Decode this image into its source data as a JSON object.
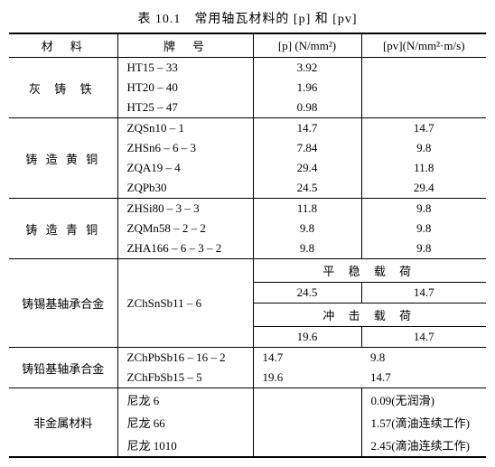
{
  "caption": "表 10.1　常用轴瓦材料的 [p] 和 [pv]",
  "head": {
    "c1": "材　料",
    "c2": "牌　号",
    "c3": "[p] (N/mm²)",
    "c4": "[pv](N/mm²·m/s)"
  },
  "sections": [
    {
      "material": "灰 铸 铁",
      "rows": [
        {
          "grade": "HT15 – 33",
          "p": "3.92",
          "pv": ""
        },
        {
          "grade": "HT20 – 40",
          "p": "1.96",
          "pv": ""
        },
        {
          "grade": "HT25 – 47",
          "p": "0.98",
          "pv": ""
        }
      ]
    },
    {
      "material": "铸 造 黄 铜",
      "rows": [
        {
          "grade": "ZQSn10 – 1",
          "p": "14.7",
          "pv": "14.7"
        },
        {
          "grade": "ZHSn6 – 6 – 3",
          "p": "7.84",
          "pv": "9.8"
        },
        {
          "grade": "ZQA19 – 4",
          "p": "29.4",
          "pv": "11.8"
        },
        {
          "grade": "ZQPb30",
          "p": "24.5",
          "pv": "29.4"
        }
      ]
    },
    {
      "material": "铸 造 青 铜",
      "rows": [
        {
          "grade": "ZHSi80 – 3 – 3",
          "p": "11.8",
          "pv": "9.8"
        },
        {
          "grade": "ZQMn58 – 2 – 2",
          "p": "9.8",
          "pv": "9.8"
        },
        {
          "grade": "ZHA166 – 6 – 3 – 2",
          "p": "9.8",
          "pv": "9.8"
        }
      ]
    }
  ],
  "tin_alloy": {
    "material": "铸锡基轴承合金",
    "grade": "ZChSnSb11 – 6",
    "rowA_label": "平 稳 载 荷",
    "rowA_p": "24.5",
    "rowA_pv": "14.7",
    "rowB_label": "冲 击 载 荷",
    "rowB_p": "19.6",
    "rowB_pv": "14.7"
  },
  "lead_alloy": {
    "material": "铸铅基轴承合金",
    "rows": [
      {
        "grade": "ZChPbSb16 – 16 – 2",
        "p": "14.7",
        "pv": "9.8"
      },
      {
        "grade": "ZChFbSb15 – 5",
        "p": "19.6",
        "pv": "14.7"
      }
    ]
  },
  "nonmetal": {
    "material": "非金属材料",
    "rows": [
      {
        "grade": "尼龙 6",
        "pv": "0.09(无润滑)"
      },
      {
        "grade": "尼龙 66",
        "pv": "1.57(滴油连续工作)"
      },
      {
        "grade": "尼龙 1010",
        "pv": "2.45(滴油连续工作)"
      }
    ]
  }
}
